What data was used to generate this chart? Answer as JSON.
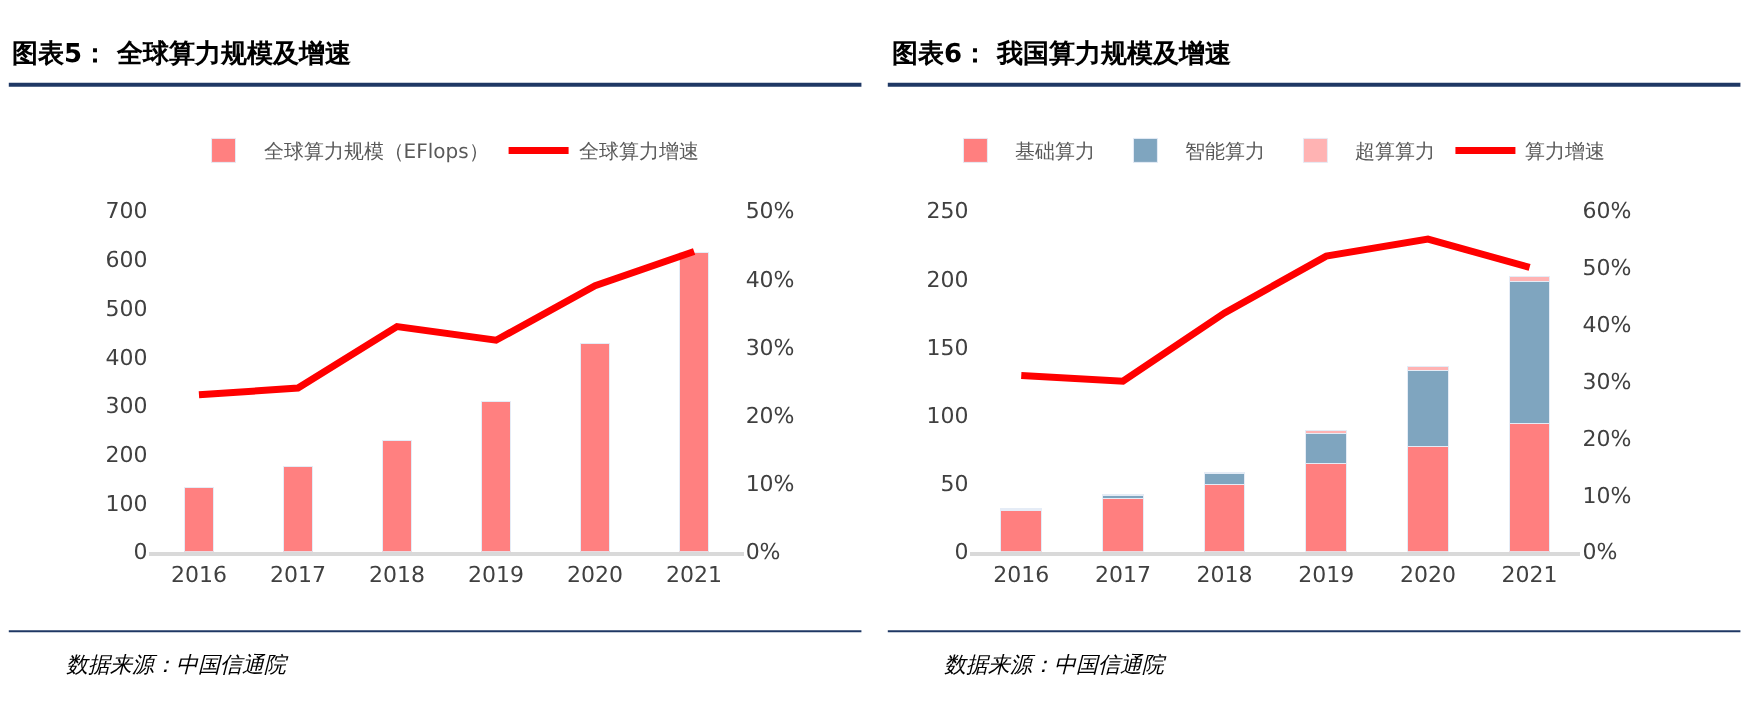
{
  "chart_data": [
    {
      "type": "bar",
      "title": "图表5： 全球算力规模及增速",
      "categories": [
        "2016",
        "2017",
        "2018",
        "2019",
        "2020",
        "2021"
      ],
      "series": [
        {
          "name": "全球算力规模（EFlops）",
          "color": "#ff8080",
          "values": [
            132,
            175,
            228,
            308,
            428,
            615
          ]
        },
        {
          "name": "全球算力增速",
          "type": "line",
          "axis": "y2",
          "color": "#ff0000",
          "values": [
            23,
            24,
            33,
            31,
            39,
            44
          ]
        }
      ],
      "ylim": [
        0,
        700
      ],
      "yticks": [
        0,
        100,
        200,
        300,
        400,
        500,
        600,
        700
      ],
      "y2lim": [
        0,
        50
      ],
      "y2ticks": [
        {
          "value": 0,
          "label": "0%"
        },
        {
          "value": 10,
          "label": "10%"
        },
        {
          "value": 20,
          "label": "20%"
        },
        {
          "value": 30,
          "label": "30%"
        },
        {
          "value": 40,
          "label": "40%"
        },
        {
          "value": 50,
          "label": "50%"
        }
      ],
      "legend": "top",
      "marker": "none",
      "annotations": [
        "数据来源：中国信通院"
      ]
    },
    {
      "type": "bar",
      "title": "图表6： 我国算力规模及增速",
      "categories": [
        "2016",
        "2017",
        "2018",
        "2019",
        "2020",
        "2021"
      ],
      "stacked": true,
      "series": [
        {
          "name": "基础算力",
          "color": "#ff7f7f",
          "values": [
            30,
            39,
            49,
            65,
            77,
            94
          ]
        },
        {
          "name": "智能算力",
          "color": "#7fa5bf",
          "values": [
            1,
            2,
            8,
            22,
            56,
            104
          ]
        },
        {
          "name": "超算算力",
          "color": "#ffb3b3",
          "values": [
            1,
            1,
            1,
            2,
            3,
            4
          ]
        },
        {
          "name": "算力增速",
          "type": "line",
          "axis": "y2",
          "color": "#ff0000",
          "values": [
            31,
            30,
            42,
            52,
            55,
            50
          ]
        }
      ],
      "ylim": [
        0,
        250
      ],
      "yticks": [
        0,
        50,
        100,
        150,
        200,
        250
      ],
      "y2lim": [
        0,
        60
      ],
      "y2ticks": [
        {
          "value": 0,
          "label": "0%"
        },
        {
          "value": 10,
          "label": "10%"
        },
        {
          "value": 20,
          "label": "20%"
        },
        {
          "value": 30,
          "label": "30%"
        },
        {
          "value": 40,
          "label": "40%"
        },
        {
          "value": 50,
          "label": "50%"
        },
        {
          "value": 60,
          "label": "60%"
        }
      ],
      "legend": "top",
      "marker": "none",
      "annotations": [
        "数据来源：中国信通院"
      ]
    }
  ]
}
